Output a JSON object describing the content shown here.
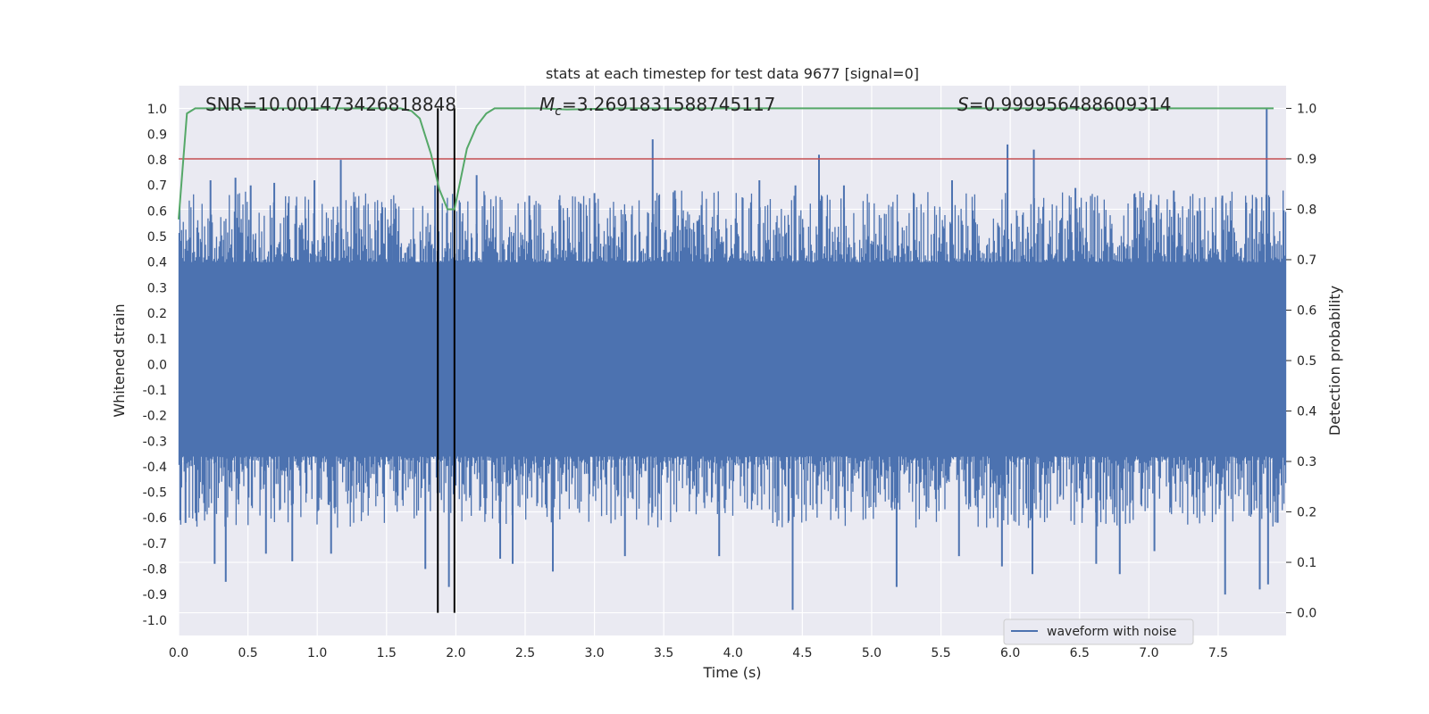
{
  "chart_data": {
    "type": "line",
    "title": "stats at each timestep for test data 9677 [signal=0]",
    "xlabel": "Time (s)",
    "ylabel": "Whitened strain",
    "y2label": "Detection probability",
    "xlim": [
      0.0,
      7.99
    ],
    "ylim": [
      -1.06,
      1.09
    ],
    "y2lim": [
      -0.045,
      1.045
    ],
    "xticks": [
      "0.0",
      "0.5",
      "1.0",
      "1.5",
      "2.0",
      "2.5",
      "3.0",
      "3.5",
      "4.0",
      "4.5",
      "5.0",
      "5.5",
      "6.0",
      "6.5",
      "7.0",
      "7.5"
    ],
    "yticks": [
      "1.0",
      "0.9",
      "0.8",
      "0.7",
      "0.6",
      "0.5",
      "0.4",
      "0.3",
      "0.2",
      "0.1",
      "0.0",
      "-0.1",
      "-0.2",
      "-0.3",
      "-0.4",
      "-0.5",
      "-0.6",
      "-0.7",
      "-0.8",
      "-0.9",
      "-1.0"
    ],
    "y2ticks": [
      "1.0",
      "0.9",
      "0.8",
      "0.7",
      "0.6",
      "0.5",
      "0.4",
      "0.3",
      "0.2",
      "0.1",
      "0.0"
    ],
    "grid": true,
    "legend": {
      "position": "lower-right",
      "entries": [
        "waveform with noise"
      ]
    },
    "annotations": {
      "snr": "SNR=10.001473426818848",
      "mc_symbol": "M",
      "mc_sub": "c",
      "mc_value": "=3.2691831588745117",
      "s_symbol": "S",
      "s_value": "=0.999956488609314"
    },
    "threshold": 0.9,
    "vlines": [
      1.87,
      1.99
    ],
    "series": [
      {
        "name": "waveform with noise",
        "axis": "left",
        "style": "dense-noise",
        "band": [
          -0.36,
          0.4
        ],
        "peaks": [
          [
            0.23,
            0.72
          ],
          [
            0.41,
            0.73
          ],
          [
            0.52,
            0.7
          ],
          [
            0.69,
            0.71
          ],
          [
            0.98,
            0.72
          ],
          [
            1.17,
            0.8
          ],
          [
            1.55,
            0.55
          ],
          [
            1.85,
            0.7
          ],
          [
            2.15,
            0.74
          ],
          [
            2.53,
            0.66
          ],
          [
            3.0,
            0.67
          ],
          [
            3.42,
            0.88
          ],
          [
            3.58,
            0.68
          ],
          [
            4.19,
            0.72
          ],
          [
            4.45,
            0.7
          ],
          [
            4.62,
            0.82
          ],
          [
            4.8,
            0.7
          ],
          [
            5.58,
            0.72
          ],
          [
            5.98,
            0.86
          ],
          [
            6.17,
            0.84
          ],
          [
            6.47,
            0.69
          ],
          [
            7.18,
            0.68
          ],
          [
            7.53,
            0.66
          ],
          [
            7.85,
            1.0
          ]
        ],
        "troughs": [
          [
            0.05,
            -0.62
          ],
          [
            0.26,
            -0.78
          ],
          [
            0.34,
            -0.85
          ],
          [
            0.63,
            -0.74
          ],
          [
            0.82,
            -0.77
          ],
          [
            1.1,
            -0.74
          ],
          [
            1.78,
            -0.8
          ],
          [
            1.95,
            -0.87
          ],
          [
            2.32,
            -0.76
          ],
          [
            2.41,
            -0.78
          ],
          [
            2.7,
            -0.81
          ],
          [
            3.22,
            -0.75
          ],
          [
            3.9,
            -0.75
          ],
          [
            4.43,
            -0.96
          ],
          [
            5.18,
            -0.87
          ],
          [
            5.63,
            -0.75
          ],
          [
            5.94,
            -0.79
          ],
          [
            6.16,
            -0.82
          ],
          [
            6.62,
            -0.78
          ],
          [
            6.79,
            -0.82
          ],
          [
            7.04,
            -0.73
          ],
          [
            7.55,
            -0.9
          ],
          [
            7.8,
            -0.88
          ],
          [
            7.86,
            -0.86
          ]
        ]
      },
      {
        "name": "detection probability",
        "axis": "right",
        "color": "#55a868",
        "x": [
          0.0,
          0.06,
          0.12,
          0.2,
          0.5,
          1.0,
          1.6,
          1.68,
          1.74,
          1.82,
          1.88,
          1.94,
          1.99,
          2.02,
          2.08,
          2.15,
          2.22,
          2.28,
          2.4,
          2.6,
          2.8,
          3.2,
          4.0,
          5.0,
          6.0,
          7.0,
          7.5,
          7.9
        ],
        "y": [
          0.78,
          0.99,
          1.0,
          1.0,
          1.0,
          1.0,
          1.0,
          0.995,
          0.98,
          0.91,
          0.84,
          0.8,
          0.8,
          0.84,
          0.92,
          0.965,
          0.99,
          1.0,
          1.0,
          1.0,
          0.998,
          1.0,
          1.0,
          1.0,
          1.0,
          1.0,
          1.0,
          1.0
        ]
      }
    ],
    "colors": {
      "waveform": "#4c72b0",
      "probability": "#55a868",
      "threshold": "#c44e52",
      "vline": "#000000",
      "axes_bg": "#eaeaf2",
      "grid": "#ffffff"
    }
  }
}
